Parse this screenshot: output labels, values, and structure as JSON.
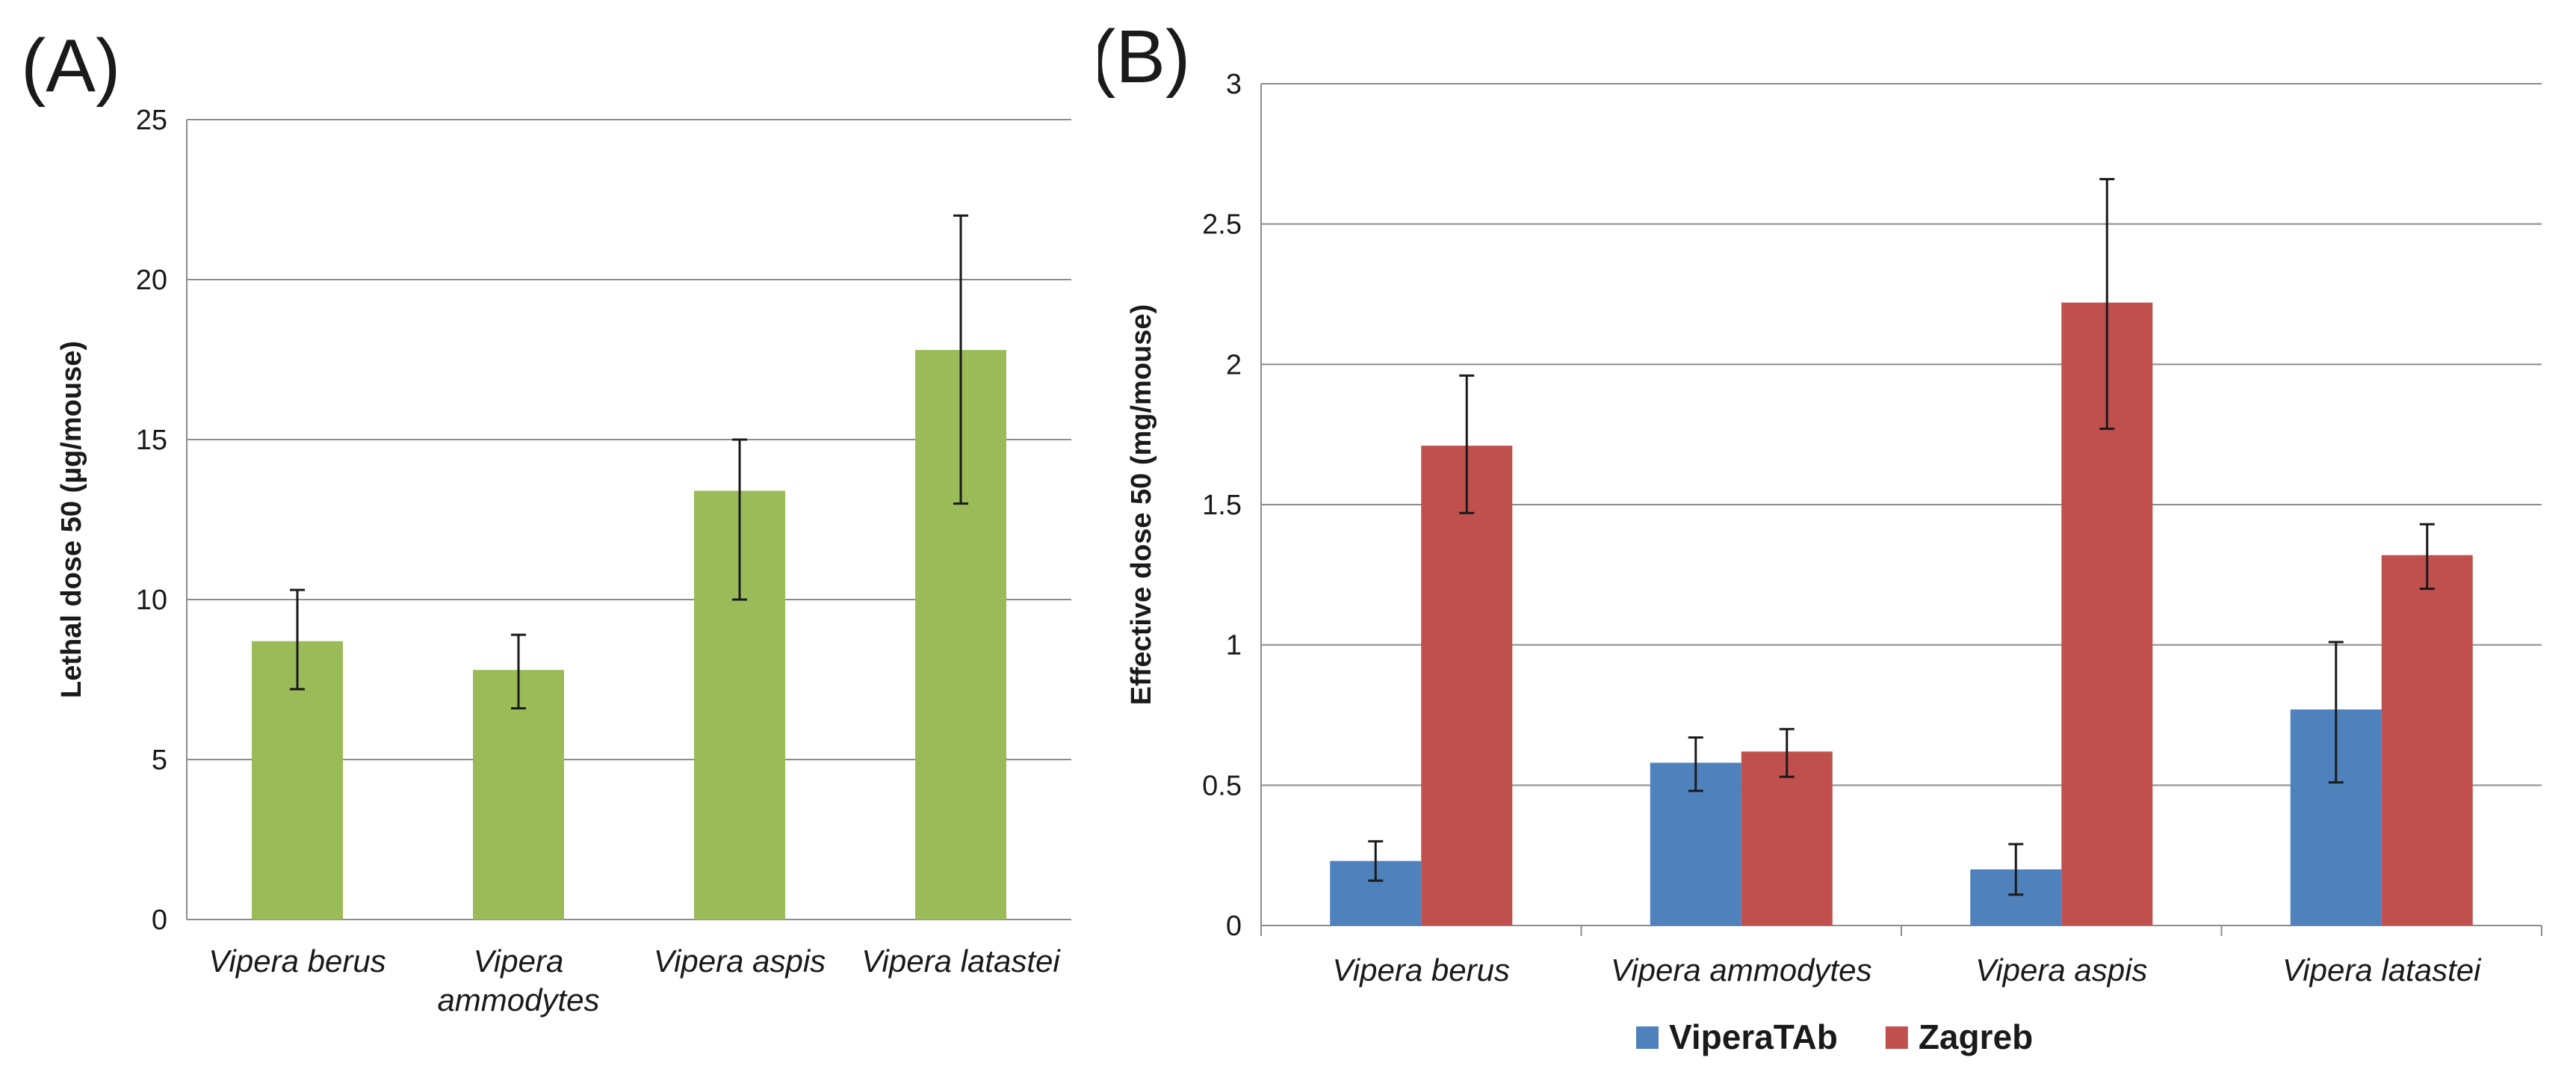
{
  "colors": {
    "green": "#9bbb59",
    "blue": "#4f81bd",
    "red": "#c0504d"
  },
  "panel_a": {
    "label": "(A)"
  },
  "panel_b": {
    "label": "(B)"
  },
  "chart_data": [
    {
      "type": "bar",
      "title": "",
      "xlabel": "",
      "ylabel": "Lethal dose 50 (µg/mouse)",
      "ylim": [
        0,
        25
      ],
      "yticks": [
        0,
        5,
        10,
        15,
        20,
        25
      ],
      "categories": [
        [
          "Vipera berus"
        ],
        [
          "Vipera",
          "ammodytes"
        ],
        [
          "Vipera aspis"
        ],
        [
          "Vipera latastei"
        ]
      ],
      "series": [
        {
          "name": "",
          "values": [
            8.7,
            7.8,
            13.4,
            17.8
          ],
          "err_low": [
            7.2,
            6.6,
            10.0,
            13.0
          ],
          "err_high": [
            10.3,
            8.9,
            15.0,
            22.0
          ]
        }
      ]
    },
    {
      "type": "bar",
      "title": "",
      "xlabel": "",
      "ylabel": "Effective dose 50 (mg/mouse)",
      "ylim": [
        0,
        3
      ],
      "yticks": [
        0,
        0.5,
        1,
        1.5,
        2,
        2.5,
        3
      ],
      "categories": [
        [
          "Vipera berus"
        ],
        [
          "Vipera ammodytes"
        ],
        [
          "Vipera aspis"
        ],
        [
          "Vipera latastei"
        ]
      ],
      "legend": "bottom",
      "series": [
        {
          "name": "ViperaTAb",
          "values": [
            0.23,
            0.58,
            0.2,
            0.77
          ],
          "err_low": [
            0.16,
            0.48,
            0.11,
            0.51
          ],
          "err_high": [
            0.3,
            0.67,
            0.29,
            1.01
          ]
        },
        {
          "name": "Zagreb",
          "values": [
            1.71,
            0.62,
            2.22,
            1.32
          ],
          "err_low": [
            1.47,
            0.53,
            1.77,
            1.2
          ],
          "err_high": [
            1.96,
            0.7,
            2.66,
            1.43
          ]
        }
      ]
    }
  ]
}
